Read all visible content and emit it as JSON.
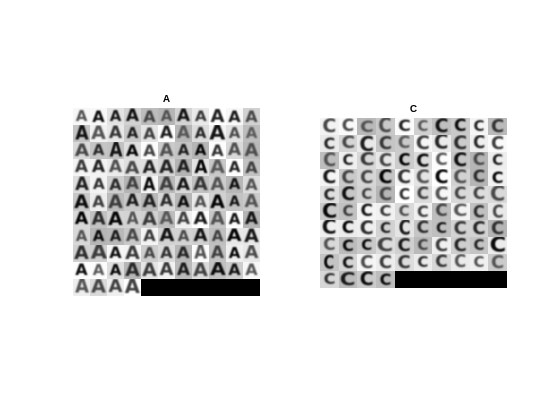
{
  "panels": [
    {
      "id": "A",
      "title": "A",
      "glyph": "A",
      "grid": {
        "rows": 11,
        "cols": 11,
        "filled_cells": 114,
        "blank_color": "#000000"
      }
    },
    {
      "id": "C",
      "title": "C",
      "glyph": "C",
      "grid": {
        "rows": 10,
        "cols": 10,
        "filled_cells": 94,
        "blank_color": "#000000"
      }
    }
  ]
}
